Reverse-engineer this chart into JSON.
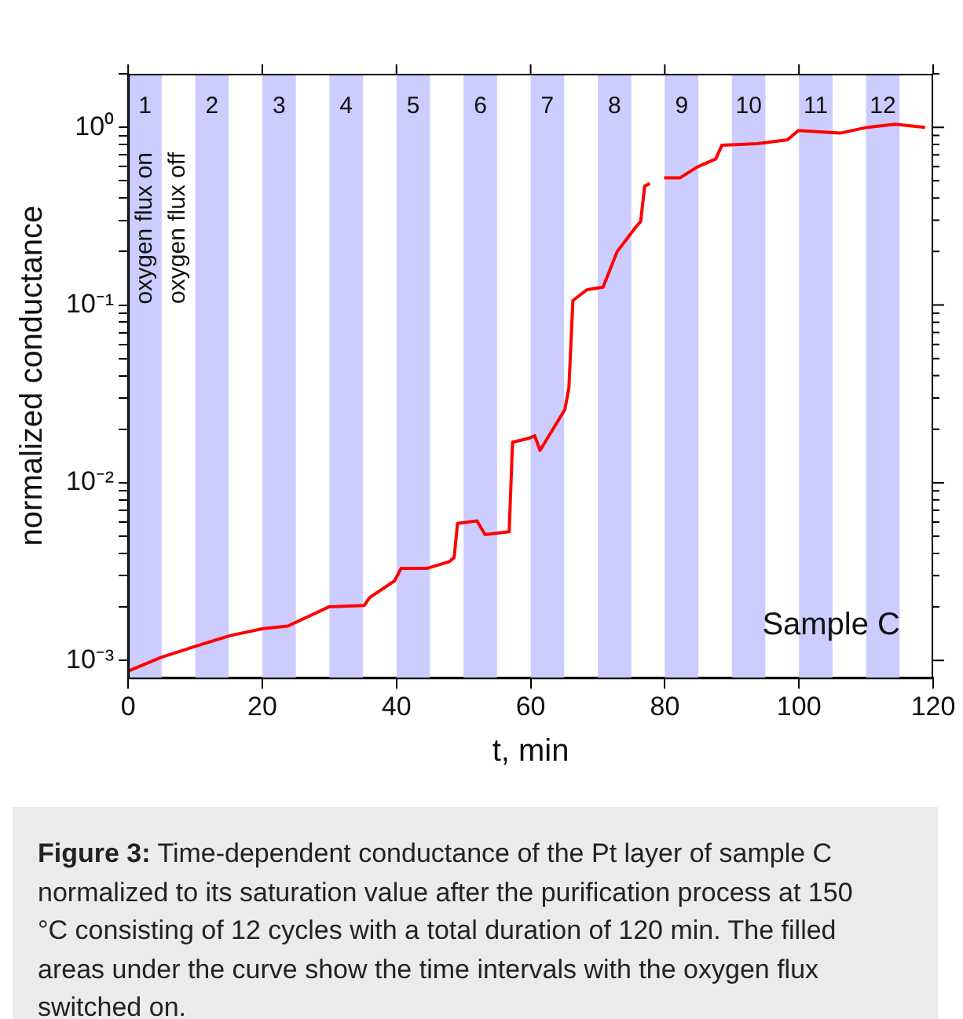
{
  "chart_data": {
    "type": "line",
    "xlabel": "t, min",
    "ylabel": "normalized conductance",
    "x": [
      0,
      4.9,
      10,
      15.2,
      20.1,
      23.8,
      29.9,
      35.2,
      36,
      39.7,
      40.7,
      44.6,
      47.9,
      48.6,
      49.1,
      52,
      53.2,
      56.8,
      57.3,
      59.8,
      60.6,
      61.4,
      65.1,
      65.7,
      66.3,
      68.4,
      70.8,
      72.9,
      75.7,
      76.4,
      77,
      77.8,
      79,
      79.9,
      82.3,
      84.8,
      87.6,
      88.5,
      93.8,
      98.3,
      99.9,
      106.1,
      110.2,
      114.3,
      118.8
    ],
    "series": [
      {
        "color": "#ff0000",
        "values": [
          0.00087,
          0.00104,
          0.0012,
          0.00138,
          0.00151,
          0.00156,
          0.002,
          0.00204,
          0.00226,
          0.0028,
          0.0033,
          0.0033,
          0.0036,
          0.0038,
          0.0059,
          0.0061,
          0.0051,
          0.0053,
          0.0169,
          0.0178,
          0.0184,
          0.0152,
          0.0258,
          0.0342,
          0.106,
          0.122,
          0.126,
          0.2,
          0.275,
          0.295,
          0.467,
          0.483,
          null,
          0.519,
          0.52,
          0.597,
          0.664,
          0.792,
          0.809,
          0.851,
          0.96,
          0.927,
          1.0,
          1.04,
          1.0
        ]
      }
    ],
    "log": "y",
    "xlim": [
      0,
      120
    ],
    "xticks": [
      0,
      20,
      40,
      60,
      80,
      100,
      120
    ],
    "ylim": [
      0.0008,
      2
    ],
    "yticks": [
      {
        "value": 0.001,
        "label": "10⁻³"
      },
      {
        "value": 0.002,
        "label": null
      },
      {
        "value": 0.003,
        "label": null
      },
      {
        "value": 0.004,
        "label": null
      },
      {
        "value": 0.005,
        "label": null
      },
      {
        "value": 0.006,
        "label": null
      },
      {
        "value": 0.007,
        "label": null
      },
      {
        "value": 0.008,
        "label": null
      },
      {
        "value": 0.009,
        "label": null
      },
      {
        "value": 0.01,
        "label": "10⁻²"
      },
      {
        "value": 0.02,
        "label": null
      },
      {
        "value": 0.03,
        "label": null
      },
      {
        "value": 0.04,
        "label": null
      },
      {
        "value": 0.05,
        "label": null
      },
      {
        "value": 0.06,
        "label": null
      },
      {
        "value": 0.07,
        "label": null
      },
      {
        "value": 0.08,
        "label": null
      },
      {
        "value": 0.09,
        "label": null
      },
      {
        "value": 0.1,
        "label": "10⁻¹"
      },
      {
        "value": 0.2,
        "label": null
      },
      {
        "value": 0.3,
        "label": null
      },
      {
        "value": 0.4,
        "label": null
      },
      {
        "value": 0.5,
        "label": null
      },
      {
        "value": 0.6,
        "label": null
      },
      {
        "value": 0.7,
        "label": null
      },
      {
        "value": 0.8,
        "label": null
      },
      {
        "value": 0.9,
        "label": null
      },
      {
        "value": 1,
        "label": "10⁰"
      },
      {
        "value": 2,
        "label": null
      }
    ],
    "grid": false,
    "legend": false,
    "marker": "none",
    "line_style": "solid",
    "bands": [
      {
        "axis": "x",
        "from": 0,
        "to": 5,
        "label": "1",
        "color": "#ccccff"
      },
      {
        "axis": "x",
        "from": 10,
        "to": 15,
        "label": "2",
        "color": "#ccccff"
      },
      {
        "axis": "x",
        "from": 20,
        "to": 25,
        "label": "3",
        "color": "#ccccff"
      },
      {
        "axis": "x",
        "from": 30,
        "to": 35,
        "label": "4",
        "color": "#ccccff"
      },
      {
        "axis": "x",
        "from": 40,
        "to": 45,
        "label": "5",
        "color": "#ccccff"
      },
      {
        "axis": "x",
        "from": 50,
        "to": 55,
        "label": "6",
        "color": "#ccccff"
      },
      {
        "axis": "x",
        "from": 60,
        "to": 65,
        "label": "7",
        "color": "#ccccff"
      },
      {
        "axis": "x",
        "from": 70,
        "to": 75,
        "label": "8",
        "color": "#ccccff"
      },
      {
        "axis": "x",
        "from": 80,
        "to": 85,
        "label": "9",
        "color": "#ccccff"
      },
      {
        "axis": "x",
        "from": 90,
        "to": 95,
        "label": "10",
        "color": "#ccccff"
      },
      {
        "axis": "x",
        "from": 100,
        "to": 105,
        "label": "11",
        "color": "#ccccff"
      },
      {
        "axis": "x",
        "from": 110,
        "to": 115,
        "label": "12",
        "color": "#ccccff"
      }
    ],
    "annotations": [
      "oxygen flux on",
      "oxygen flux off",
      "Sample C",
      "Figure 3: Time-dependent conductance of the Pt layer of sample C normalized to its saturation value after the purification process at 150 °C consisting of 12 cycles with a total duration of 120 min. The filled areas under the curve show the time intervals with the oxygen flux switched on."
    ]
  }
}
